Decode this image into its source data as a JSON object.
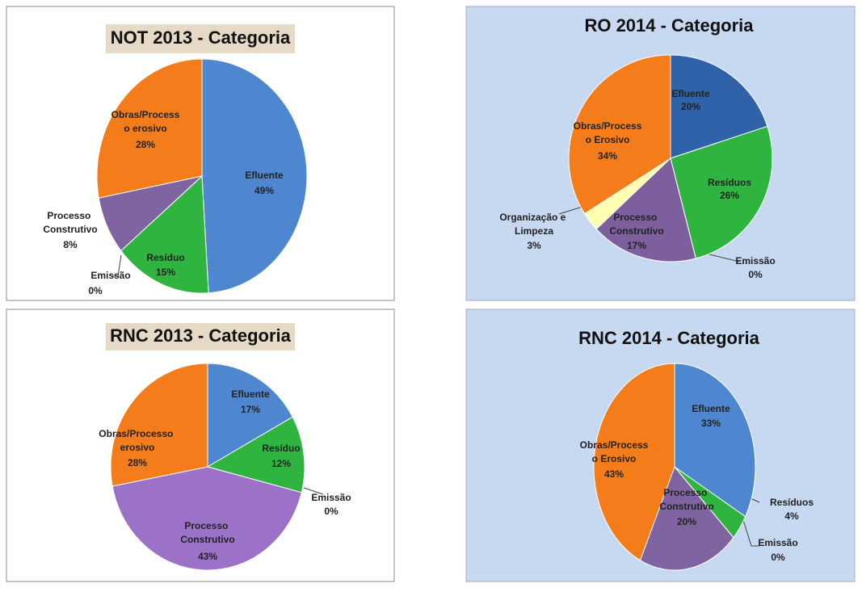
{
  "chart_data": [
    {
      "type": "pie",
      "title": "NOT 2013 - Categoria",
      "categories": [
        "Efluente",
        "Resíduo",
        "Emissão",
        "Processo Construtivo",
        "Obras/Processo erosivo"
      ],
      "values": [
        49,
        15,
        0,
        8,
        28
      ],
      "value_labels": [
        "49%",
        "15%",
        "0%",
        "8%",
        "28%"
      ],
      "colors": [
        "#4f86d0",
        "#2fb53f",
        "#6a6a9a",
        "#8064a2",
        "#f57c1a"
      ]
    },
    {
      "type": "pie",
      "title": "RO 2014 - Categoria",
      "categories": [
        "Efluente",
        "Resíduos",
        "Emissão",
        "Processo Construtivo",
        "Organização e Limpeza",
        "Obras/Processo Erosivo"
      ],
      "values": [
        20,
        26,
        0,
        17,
        3,
        34
      ],
      "value_labels": [
        "20%",
        "26%",
        "0%",
        "17%",
        "3%",
        "34%"
      ],
      "colors": [
        "#2f62a8",
        "#2fb53f",
        "#6a6a9a",
        "#7d5f9e",
        "#ffffb0",
        "#f57c1a"
      ]
    },
    {
      "type": "pie",
      "title": "RNC 2013 - Categoria",
      "categories": [
        "Efluente",
        "Resíduo",
        "Emissão",
        "Processo Construtivo",
        "Obras/Processo erosivo"
      ],
      "values": [
        17,
        12,
        0,
        43,
        28
      ],
      "value_labels": [
        "17%",
        "12%",
        "0%",
        "43%",
        "28%"
      ],
      "colors": [
        "#4f86d0",
        "#2fb53f",
        "#6a6a9a",
        "#9b72c8",
        "#f57c1a"
      ]
    },
    {
      "type": "pie",
      "title": "RNC 2014 - Categoria",
      "categories": [
        "Efluente",
        "Resíduos",
        "Emissão",
        "Processo Construtivo",
        "Obras/Processo Erosivo"
      ],
      "values": [
        33,
        4,
        0,
        20,
        43
      ],
      "value_labels": [
        "33%",
        "4%",
        "0%",
        "20%",
        "43%"
      ],
      "colors": [
        "#4f86d0",
        "#2fb53f",
        "#6a6a9a",
        "#8064a2",
        "#f57c1a"
      ]
    }
  ]
}
